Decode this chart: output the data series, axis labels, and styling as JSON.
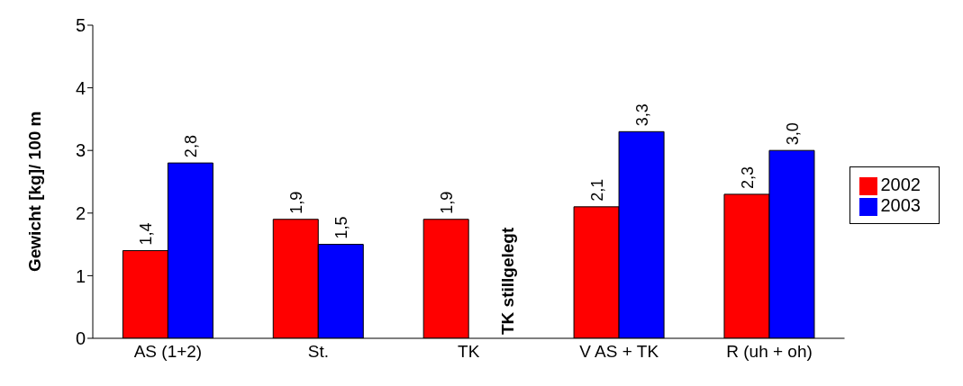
{
  "chart_data": {
    "type": "bar",
    "ylabel": "Gewicht [kg]/ 100 m",
    "categories": [
      "AS (1+2)",
      "St.",
      "TK",
      "V AS + TK",
      "R (uh + oh)"
    ],
    "series": [
      {
        "name": "2002",
        "color": "#ff0000",
        "values": [
          1.4,
          1.9,
          1.9,
          2.1,
          2.3
        ],
        "value_labels": [
          "1,4",
          "1,9",
          "1,9",
          "2,1",
          "2,3"
        ]
      },
      {
        "name": "2003",
        "color": "#0000ff",
        "values": [
          2.8,
          1.5,
          null,
          3.3,
          3.0
        ],
        "value_labels": [
          "2,8",
          "1,5",
          null,
          "3,3",
          "3,0"
        ]
      }
    ],
    "ylim": [
      0,
      5
    ],
    "yticks": [
      0,
      1,
      2,
      3,
      4,
      5
    ],
    "grid": false,
    "legend": "right",
    "annotations": [
      {
        "text": "TK stillgelegt",
        "x": "TK",
        "y": 0
      }
    ]
  }
}
